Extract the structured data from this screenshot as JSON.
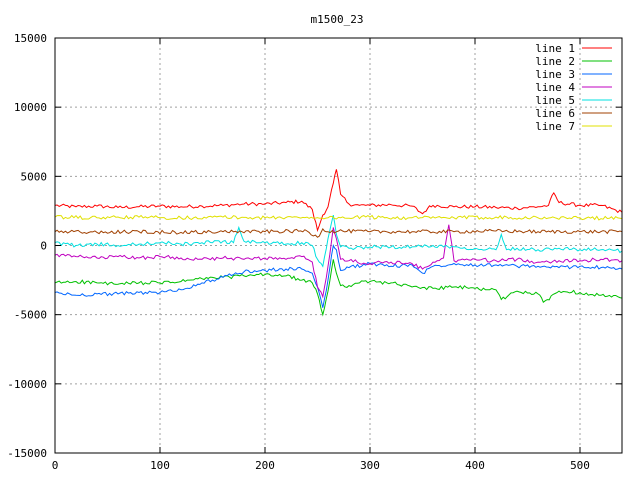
{
  "chart_data": {
    "type": "line",
    "title": "m1500_23",
    "xlabel": "",
    "ylabel": "",
    "xlim": [
      0,
      540
    ],
    "ylim": [
      -15000,
      15000
    ],
    "xticks": [
      0,
      100,
      200,
      300,
      400,
      500
    ],
    "yticks": [
      -15000,
      -10000,
      -5000,
      0,
      5000,
      10000,
      15000
    ],
    "grid": true,
    "legend_position": "top-right",
    "series": [
      {
        "name": "line 1",
        "color": "#ff0000",
        "x": [
          0,
          20,
          40,
          60,
          80,
          100,
          120,
          140,
          160,
          180,
          200,
          220,
          235,
          245,
          250,
          255,
          260,
          265,
          268,
          272,
          280,
          290,
          300,
          320,
          340,
          350,
          355,
          360,
          380,
          400,
          420,
          440,
          460,
          470,
          475,
          480,
          500,
          520,
          540
        ],
        "y": [
          2900,
          2800,
          2850,
          2750,
          2800,
          2850,
          2800,
          2850,
          2900,
          3000,
          3000,
          3100,
          3200,
          2600,
          1100,
          2200,
          2800,
          4500,
          5500,
          3700,
          3000,
          2900,
          2900,
          2950,
          2850,
          2300,
          2700,
          2900,
          2800,
          2800,
          2750,
          2700,
          2800,
          2900,
          3800,
          3100,
          2900,
          2900,
          2400
        ]
      },
      {
        "name": "line 2",
        "color": "#00c000",
        "x": [
          0,
          20,
          40,
          60,
          80,
          100,
          120,
          140,
          160,
          180,
          200,
          220,
          235,
          245,
          250,
          255,
          260,
          265,
          268,
          272,
          280,
          290,
          300,
          320,
          340,
          360,
          380,
          400,
          420,
          425,
          440,
          460,
          465,
          480,
          500,
          520,
          540
        ],
        "y": [
          -2700,
          -2600,
          -2700,
          -2800,
          -2700,
          -2700,
          -2600,
          -2400,
          -2300,
          -2200,
          -2100,
          -2200,
          -2500,
          -2700,
          -3500,
          -5000,
          -3300,
          -1000,
          -2000,
          -2900,
          -2900,
          -2700,
          -2600,
          -2700,
          -3000,
          -3100,
          -3000,
          -3100,
          -3200,
          -3900,
          -3300,
          -3500,
          -4100,
          -3300,
          -3400,
          -3600,
          -3800
        ]
      },
      {
        "name": "line 3",
        "color": "#0066ff",
        "x": [
          0,
          20,
          40,
          60,
          80,
          100,
          120,
          140,
          160,
          180,
          200,
          220,
          235,
          245,
          250,
          255,
          260,
          265,
          268,
          272,
          280,
          300,
          320,
          340,
          350,
          360,
          380,
          400,
          420,
          440,
          460,
          480,
          500,
          520,
          540
        ],
        "y": [
          -3400,
          -3600,
          -3500,
          -3500,
          -3400,
          -3400,
          -3200,
          -2700,
          -2300,
          -1900,
          -1800,
          -1700,
          -1700,
          -2000,
          -3000,
          -4500,
          -2500,
          0,
          -300,
          -1800,
          -1600,
          -1300,
          -1500,
          -1400,
          -2000,
          -1500,
          -1300,
          -1400,
          -1400,
          -1500,
          -1500,
          -1600,
          -1500,
          -1600,
          -1700
        ]
      },
      {
        "name": "line 4",
        "color": "#c000c0",
        "x": [
          0,
          20,
          40,
          60,
          80,
          100,
          120,
          140,
          160,
          180,
          200,
          220,
          235,
          245,
          250,
          255,
          260,
          265,
          268,
          272,
          280,
          300,
          320,
          340,
          350,
          360,
          370,
          375,
          380,
          400,
          420,
          440,
          460,
          480,
          500,
          520,
          540
        ],
        "y": [
          -700,
          -800,
          -900,
          -800,
          -900,
          -800,
          -900,
          -1000,
          -900,
          -1000,
          -900,
          -1000,
          -800,
          -1200,
          -3000,
          -3700,
          -1500,
          1300,
          500,
          -1000,
          -1100,
          -1300,
          -1200,
          -1300,
          -1700,
          -1200,
          -900,
          1500,
          -1100,
          -1000,
          -1100,
          -1000,
          -1200,
          -1100,
          -1100,
          -1000,
          -1100
        ]
      },
      {
        "name": "line 5",
        "color": "#00e0e0",
        "x": [
          0,
          20,
          40,
          60,
          80,
          100,
          120,
          140,
          160,
          170,
          175,
          180,
          200,
          220,
          235,
          245,
          250,
          255,
          260,
          265,
          268,
          272,
          280,
          300,
          320,
          340,
          360,
          380,
          400,
          420,
          425,
          430,
          440,
          460,
          480,
          500,
          520,
          540
        ],
        "y": [
          200,
          0,
          100,
          0,
          100,
          200,
          100,
          200,
          300,
          200,
          1300,
          300,
          200,
          100,
          200,
          0,
          -1000,
          -1500,
          500,
          2200,
          800,
          -100,
          -200,
          -100,
          -100,
          -100,
          0,
          -100,
          -200,
          -300,
          800,
          -300,
          -200,
          -300,
          -200,
          -300,
          -300,
          -400
        ]
      },
      {
        "name": "line 6",
        "color": "#a04000",
        "x": [
          0,
          40,
          80,
          120,
          160,
          200,
          240,
          250,
          255,
          260,
          270,
          300,
          340,
          380,
          420,
          460,
          500,
          540
        ],
        "y": [
          1000,
          950,
          1000,
          950,
          1000,
          1000,
          1050,
          600,
          1200,
          1000,
          1050,
          1000,
          1000,
          1000,
          1050,
          1000,
          1000,
          1000
        ]
      },
      {
        "name": "line 7",
        "color": "#e0e000",
        "x": [
          0,
          40,
          80,
          120,
          160,
          200,
          240,
          260,
          300,
          340,
          380,
          420,
          460,
          500,
          540
        ],
        "y": [
          2050,
          2000,
          2050,
          2000,
          2050,
          2000,
          2050,
          2000,
          2050,
          2000,
          2000,
          2050,
          2000,
          2000,
          1950
        ]
      }
    ]
  }
}
